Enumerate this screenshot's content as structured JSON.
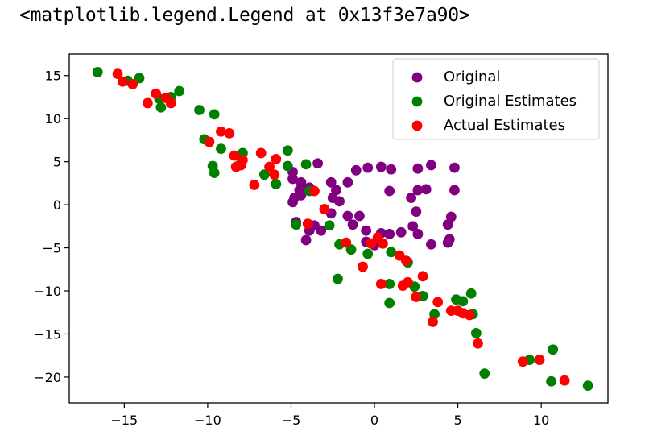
{
  "output_text": "<matplotlib.legend.Legend at 0x13f3e7a90>",
  "chart_data": {
    "type": "scatter",
    "title": "",
    "xlabel": "",
    "ylabel": "",
    "xlim": [
      -18.3,
      14.0
    ],
    "ylim": [
      -23.0,
      17.5
    ],
    "xticks": [
      -15,
      -10,
      -5,
      0,
      5,
      10
    ],
    "xtick_labels": [
      "−15",
      "−10",
      "−5",
      "0",
      "5",
      "10"
    ],
    "yticks": [
      15,
      10,
      5,
      0,
      -5,
      -10,
      -15,
      -20
    ],
    "ytick_labels": [
      "15",
      "10",
      "5",
      "0",
      "−5",
      "−10",
      "−15",
      "−20"
    ],
    "grid": false,
    "legend_position": "upper-right",
    "series": [
      {
        "name": "Original",
        "color": "#800080",
        "points": [
          [
            -4.9,
            3.8
          ],
          [
            -4.9,
            3.0
          ],
          [
            -3.4,
            4.8
          ],
          [
            -4.4,
            2.6
          ],
          [
            -3.9,
            2.0
          ],
          [
            -4.5,
            1.7
          ],
          [
            -4.8,
            0.8
          ],
          [
            -4.4,
            1.1
          ],
          [
            -4.9,
            0.3
          ],
          [
            -4.7,
            -2.0
          ],
          [
            -3.6,
            -2.4
          ],
          [
            -3.9,
            -3.0
          ],
          [
            -3.2,
            -3.0
          ],
          [
            -4.1,
            -4.1
          ],
          [
            -2.6,
            2.6
          ],
          [
            -2.3,
            1.7
          ],
          [
            -2.5,
            0.8
          ],
          [
            -2.1,
            0.4
          ],
          [
            -2.6,
            -1.0
          ],
          [
            -1.6,
            -1.3
          ],
          [
            -0.9,
            -1.3
          ],
          [
            -1.6,
            2.6
          ],
          [
            -1.1,
            4.0
          ],
          [
            -0.4,
            4.3
          ],
          [
            0.4,
            4.4
          ],
          [
            1.0,
            4.1
          ],
          [
            2.6,
            4.2
          ],
          [
            3.4,
            4.6
          ],
          [
            2.6,
            1.7
          ],
          [
            2.2,
            0.8
          ],
          [
            3.1,
            1.8
          ],
          [
            2.5,
            -0.8
          ],
          [
            2.3,
            -2.5
          ],
          [
            2.6,
            -3.4
          ],
          [
            3.4,
            -4.6
          ],
          [
            4.4,
            -2.3
          ],
          [
            4.6,
            -1.4
          ],
          [
            4.5,
            -4.0
          ],
          [
            4.4,
            -4.4
          ],
          [
            4.8,
            4.3
          ],
          [
            4.8,
            1.7
          ],
          [
            0.9,
            1.6
          ],
          [
            -0.5,
            -3.0
          ],
          [
            0.4,
            -3.3
          ],
          [
            0.9,
            -3.4
          ],
          [
            1.6,
            -3.2
          ],
          [
            -0.5,
            -4.3
          ],
          [
            0.0,
            -4.7
          ],
          [
            0.5,
            -4.5
          ],
          [
            -1.3,
            -2.3
          ]
        ]
      },
      {
        "name": "Original Estimates",
        "color": "#008000",
        "points": [
          [
            -16.6,
            15.4
          ],
          [
            -14.1,
            14.7
          ],
          [
            -14.8,
            14.4
          ],
          [
            -12.9,
            12.3
          ],
          [
            -12.2,
            12.5
          ],
          [
            -12.8,
            11.3
          ],
          [
            -11.7,
            13.2
          ],
          [
            -10.5,
            11.0
          ],
          [
            -9.6,
            10.5
          ],
          [
            -10.2,
            7.6
          ],
          [
            -9.2,
            6.5
          ],
          [
            -9.7,
            4.5
          ],
          [
            -9.6,
            3.7
          ],
          [
            -7.9,
            6.0
          ],
          [
            -8.1,
            4.6
          ],
          [
            -6.6,
            3.5
          ],
          [
            -5.9,
            2.4
          ],
          [
            -5.2,
            6.3
          ],
          [
            -5.2,
            4.5
          ],
          [
            -4.1,
            4.7
          ],
          [
            -3.9,
            1.6
          ],
          [
            -4.7,
            -2.3
          ],
          [
            -2.7,
            -2.4
          ],
          [
            -2.2,
            -8.6
          ],
          [
            -2.1,
            -4.6
          ],
          [
            -1.4,
            -5.2
          ],
          [
            -0.4,
            -5.7
          ],
          [
            1.0,
            -5.5
          ],
          [
            2.0,
            -6.7
          ],
          [
            0.9,
            -9.2
          ],
          [
            0.9,
            -11.4
          ],
          [
            2.4,
            -9.5
          ],
          [
            2.9,
            -10.6
          ],
          [
            3.6,
            -12.7
          ],
          [
            4.9,
            -11.0
          ],
          [
            5.3,
            -11.2
          ],
          [
            5.8,
            -10.3
          ],
          [
            5.9,
            -12.7
          ],
          [
            6.1,
            -14.9
          ],
          [
            6.6,
            -19.6
          ],
          [
            9.3,
            -18.0
          ],
          [
            10.7,
            -16.8
          ],
          [
            10.6,
            -20.5
          ],
          [
            12.8,
            -21.0
          ]
        ]
      },
      {
        "name": "Actual Estimates",
        "color": "#ff0000",
        "points": [
          [
            -15.4,
            15.2
          ],
          [
            -15.1,
            14.3
          ],
          [
            -14.5,
            14.0
          ],
          [
            -13.6,
            11.8
          ],
          [
            -13.1,
            12.9
          ],
          [
            -12.5,
            12.4
          ],
          [
            -12.2,
            11.8
          ],
          [
            -9.9,
            7.3
          ],
          [
            -9.2,
            8.5
          ],
          [
            -8.7,
            8.3
          ],
          [
            -8.4,
            5.7
          ],
          [
            -8.3,
            4.4
          ],
          [
            -7.9,
            5.2
          ],
          [
            -8.0,
            4.6
          ],
          [
            -7.2,
            2.3
          ],
          [
            -6.8,
            6.0
          ],
          [
            -6.3,
            4.4
          ],
          [
            -6.0,
            3.5
          ],
          [
            -5.9,
            5.3
          ],
          [
            -3.6,
            1.6
          ],
          [
            -4.0,
            -2.2
          ],
          [
            -3.0,
            -0.5
          ],
          [
            -1.7,
            -4.4
          ],
          [
            -0.7,
            -7.2
          ],
          [
            -0.2,
            -4.5
          ],
          [
            0.2,
            -3.8
          ],
          [
            0.5,
            -4.5
          ],
          [
            1.5,
            -5.9
          ],
          [
            1.9,
            -6.5
          ],
          [
            0.4,
            -9.2
          ],
          [
            1.7,
            -9.4
          ],
          [
            2.0,
            -9.0
          ],
          [
            2.5,
            -10.7
          ],
          [
            2.9,
            -8.3
          ],
          [
            3.8,
            -11.3
          ],
          [
            3.5,
            -13.6
          ],
          [
            4.6,
            -12.3
          ],
          [
            5.0,
            -12.3
          ],
          [
            5.3,
            -12.6
          ],
          [
            5.7,
            -12.8
          ],
          [
            6.2,
            -16.1
          ],
          [
            8.9,
            -18.2
          ],
          [
            9.9,
            -18.0
          ],
          [
            11.4,
            -20.4
          ]
        ]
      }
    ]
  }
}
